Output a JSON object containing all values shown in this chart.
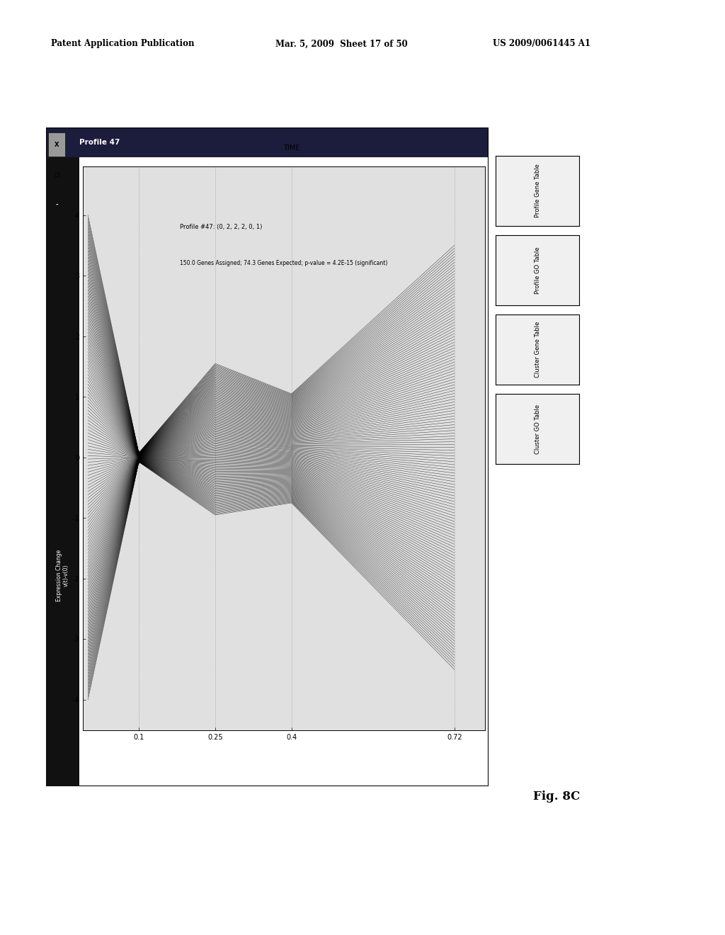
{
  "page_header_left": "Patent Application Publication",
  "page_header_mid": "Mar. 5, 2009  Sheet 17 of 50",
  "page_header_right": "US 2009/0061445 A1",
  "fig_label": "Fig. 8C",
  "title_bar_text": "Profile 47",
  "profile_line1": "Profile #47: (0, 2, 2, 2, 0, 1)",
  "profile_line2": "150.0 Genes Assigned; 74.3 Genes Expected; p-value = 4.2E-15 (significant)",
  "ylabel": "Expression Change\nv(t)-v(0)",
  "time_label": "TIME",
  "time_points": [
    0.1,
    0.25,
    0.4,
    0.72
  ],
  "yticks": [
    -4,
    -3,
    -2,
    -1,
    0,
    1,
    2,
    3,
    4
  ],
  "n_lines": 150,
  "tab_labels": [
    "Profile Gene Table",
    "Profile GO Table",
    "Cluster Gene Table",
    "Cluster GO Table"
  ]
}
